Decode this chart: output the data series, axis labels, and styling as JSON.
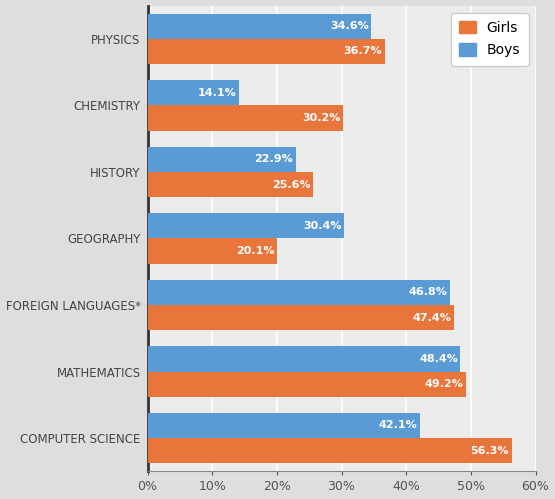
{
  "categories": [
    "PHYSICS",
    "CHEMISTRY",
    "HISTORY",
    "GEOGRAPHY",
    "FOREIGN LANGUAGES*",
    "MATHEMATICS",
    "COMPUTER SCIENCE"
  ],
  "girls": [
    36.7,
    30.2,
    25.6,
    20.1,
    47.4,
    49.2,
    56.3
  ],
  "boys": [
    34.6,
    14.1,
    22.9,
    30.4,
    46.8,
    48.4,
    42.1
  ],
  "girls_color": "#E8763A",
  "boys_color": "#5B9BD5",
  "bar_height": 0.38,
  "xlim": [
    0,
    60
  ],
  "xticks": [
    0,
    10,
    20,
    30,
    40,
    50,
    60
  ],
  "xticklabels": [
    "0%",
    "10%",
    "20%",
    "30%",
    "40%",
    "50%",
    "60%"
  ],
  "legend_girls": "Girls",
  "legend_boys": "Boys",
  "background_color": "#DEDEDE",
  "plot_bg_color": "#ECECEC",
  "label_fontsize": 8.0,
  "tick_label_fontsize": 9,
  "legend_fontsize": 10,
  "category_fontsize": 8.5
}
